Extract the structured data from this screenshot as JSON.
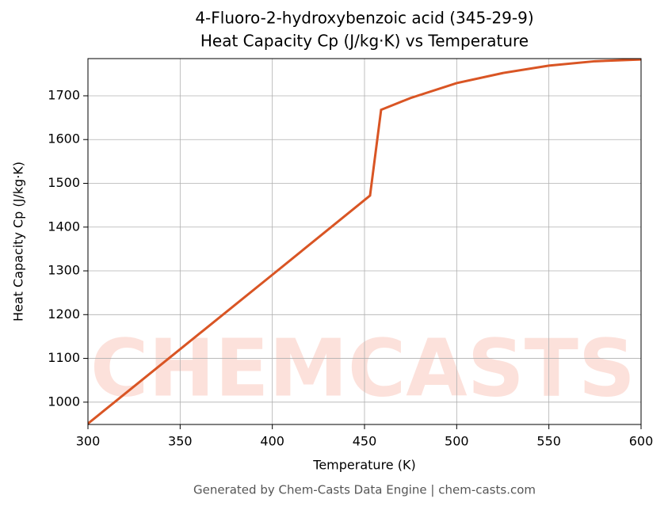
{
  "chart_data": {
    "type": "line",
    "title": "4-Fluoro-2-hydroxybenzoic acid (345-29-9)",
    "subtitle": "Heat Capacity Cp (J/kg·K) vs Temperature",
    "x_label": "Temperature (K)",
    "y_label": "Heat Capacity Cp (J/kg·K)",
    "watermark": "CHEMCASTS",
    "footer": "Generated by Chem-Casts Data Engine | chem-casts.com",
    "x": [
      300,
      350,
      400,
      453,
      459,
      475,
      500,
      525,
      550,
      575,
      600
    ],
    "values": [
      951,
      1121,
      1291,
      1472,
      1668,
      1695,
      1729,
      1752,
      1769,
      1779,
      1783
    ],
    "color": "#d95524",
    "xlim": [
      300,
      600
    ],
    "xticks": [
      300,
      350,
      400,
      450,
      500,
      550,
      600
    ],
    "ylim": [
      949,
      1785
    ],
    "yticks": [
      1000,
      1100,
      1200,
      1300,
      1400,
      1500,
      1600,
      1700
    ],
    "grid": true
  }
}
